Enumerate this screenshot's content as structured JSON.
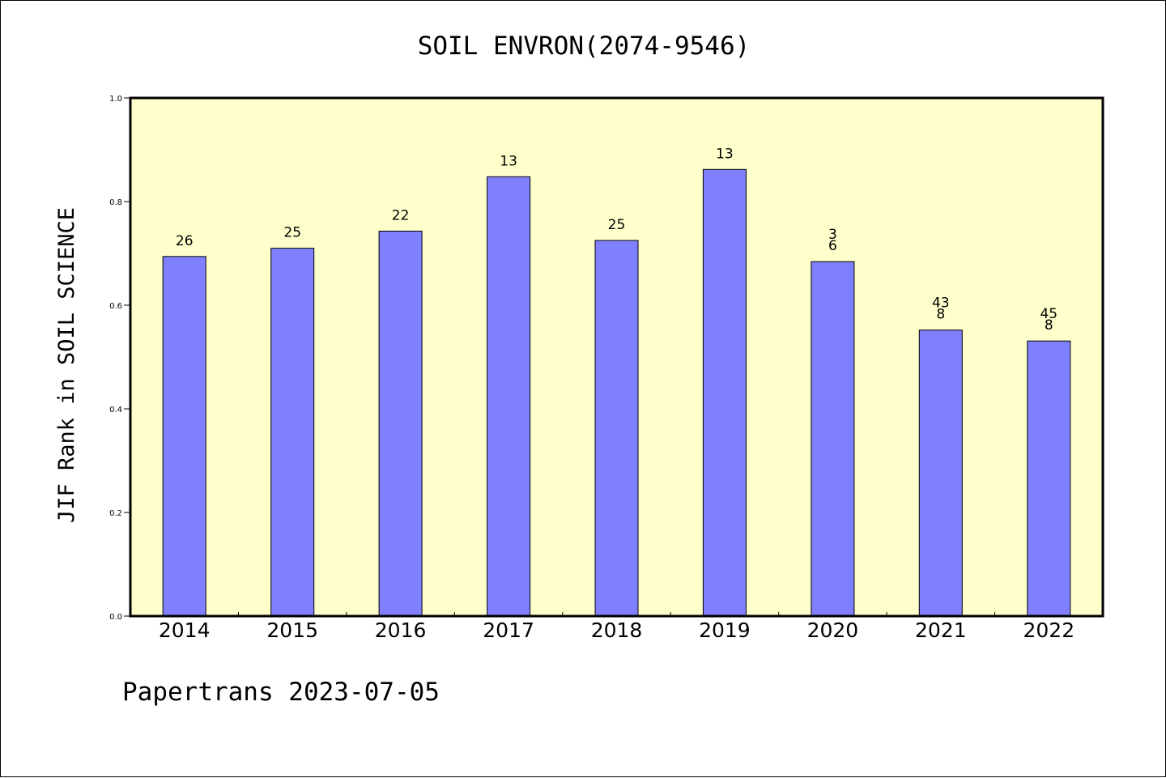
{
  "chart_data": {
    "type": "bar",
    "title": "SOIL ENVRON(2074-9546)",
    "xlabel": "",
    "ylabel": "JIF Rank in SOIL SCIENCE",
    "ylim": [
      0,
      1.0
    ],
    "yticks": [
      "0.0",
      "0.2",
      "0.4",
      "0.6",
      "0.8",
      "1.0"
    ],
    "categories": [
      "2014",
      "2015",
      "2016",
      "2017",
      "2018",
      "2019",
      "2020",
      "2021",
      "2022"
    ],
    "values": [
      0.694,
      0.71,
      0.743,
      0.848,
      0.725,
      0.862,
      0.684,
      0.552,
      0.531
    ],
    "data_labels": [
      [
        "26"
      ],
      [
        "25"
      ],
      [
        "22"
      ],
      [
        "13"
      ],
      [
        "25"
      ],
      [
        "13"
      ],
      [
        "3",
        "6"
      ],
      [
        "43",
        "8"
      ],
      [
        "45",
        "8"
      ]
    ],
    "grid": false,
    "legend": "none",
    "colors": {
      "plot_background": "#ffffcc",
      "bar": "#8080ff",
      "bar_edge": "#000000"
    }
  },
  "footer": {
    "text": "Papertrans 2023-07-05"
  }
}
